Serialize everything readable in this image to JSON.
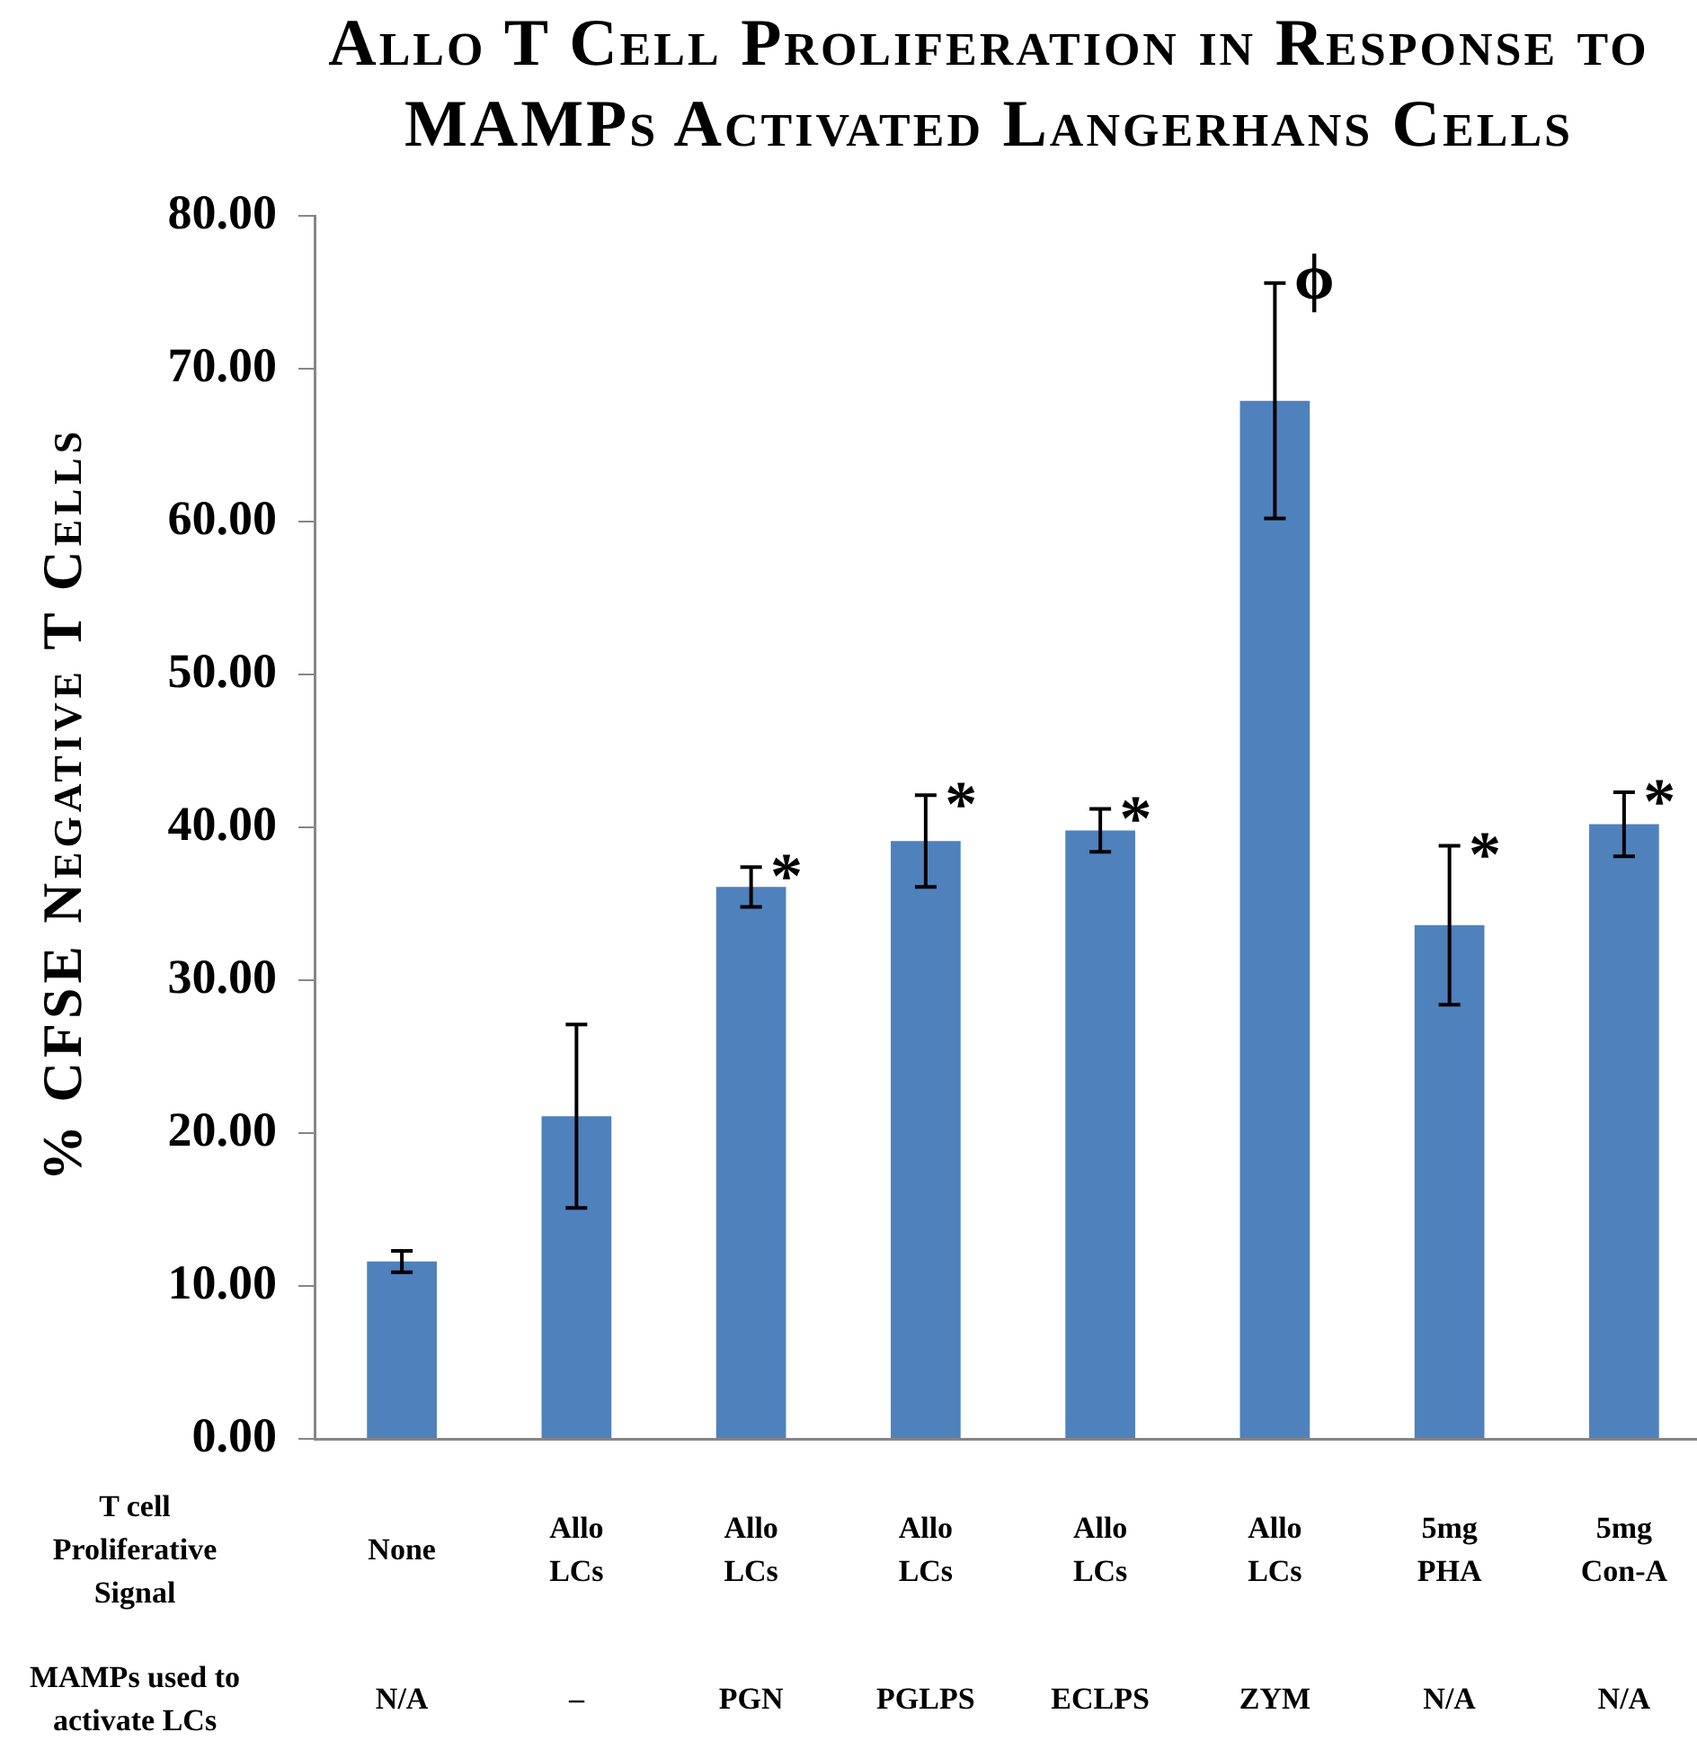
{
  "chart_data": {
    "type": "bar",
    "title": "Allo T Cell Proliferation in Response to MAMPs Activated Langerhans Cells",
    "ylabel": "% CFSE Negative T Cells",
    "xlabel": "T cell Proliferative Signal",
    "categories": [
      "None",
      "Allo LCs",
      "Allo LCs",
      "Allo LCs",
      "Allo LCs",
      "Allo LCs",
      "5mg PHA",
      "5mg Con-A"
    ],
    "values": [
      11.6,
      21.1,
      36.1,
      39.1,
      39.8,
      67.9,
      33.6,
      40.2
    ],
    "errors": [
      0.7,
      6.0,
      1.3,
      3.0,
      1.4,
      7.7,
      5.2,
      2.1
    ],
    "value_labels": [
      null,
      null,
      "*",
      "*",
      "*",
      "ϕ",
      "*",
      "*"
    ],
    "color": "#4f81bd",
    "ylim": [
      0,
      80
    ],
    "yticks": [
      {
        "value": 0,
        "label": "0.00"
      },
      {
        "value": 10,
        "label": "10.00"
      },
      {
        "value": 20,
        "label": "20.00"
      },
      {
        "value": 30,
        "label": "30.00"
      },
      {
        "value": 40,
        "label": "40.00"
      },
      {
        "value": 50,
        "label": "50.00"
      },
      {
        "value": 60,
        "label": "60.00"
      },
      {
        "value": 70,
        "label": "70.00"
      },
      {
        "value": 80,
        "label": "80.00"
      }
    ],
    "grid": false,
    "annotations": [
      "MAMPs used to activate LCs",
      "N/A",
      "–",
      "PGN",
      "PGLPS",
      "ECLPS",
      "ZYM",
      "N/A",
      "N/A"
    ]
  }
}
